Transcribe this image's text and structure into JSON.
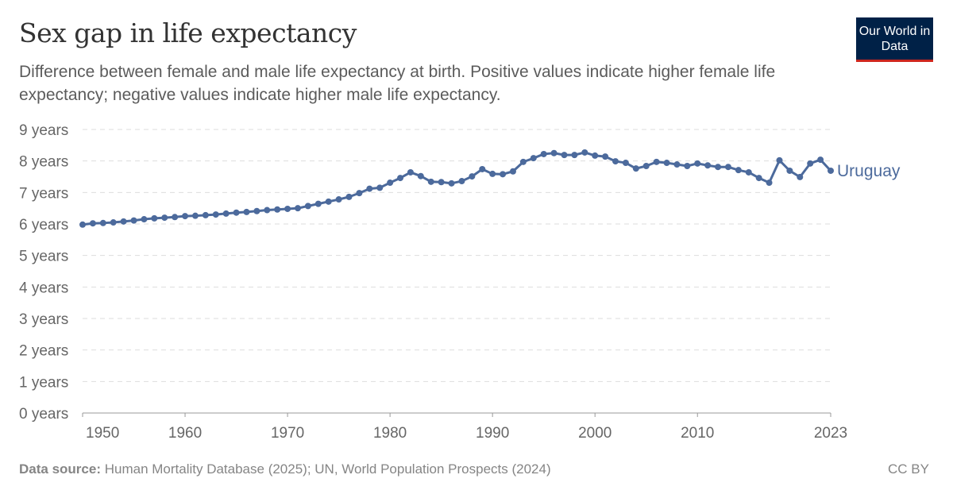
{
  "header": {
    "title": "Sex gap in life expectancy",
    "subtitle": "Difference between female and male life expectancy at birth. Positive values indicate higher female life expectancy; negative values indicate higher male life expectancy.",
    "logo": "Our World in Data"
  },
  "footer": {
    "source_label": "Data source:",
    "source": "Human Mortality Database (2025); UN, World Population Prospects (2024)",
    "license": "CC BY"
  },
  "chart_data": {
    "type": "line",
    "title": "Sex gap in life expectancy",
    "ylim": [
      0,
      9
    ],
    "y_ticks": [
      "0 years",
      "1 years",
      "2 years",
      "3 years",
      "4 years",
      "5 years",
      "6 years",
      "7 years",
      "8 years",
      "9 years"
    ],
    "x_ticks": [
      1950,
      1960,
      1970,
      1980,
      1990,
      2000,
      2010,
      2023
    ],
    "grid": "horizontal dashed",
    "color": "#4c6a9c",
    "series": [
      {
        "name": "Uruguay",
        "x": [
          1950,
          1951,
          1952,
          1953,
          1954,
          1955,
          1956,
          1957,
          1958,
          1959,
          1960,
          1961,
          1962,
          1963,
          1964,
          1965,
          1966,
          1967,
          1968,
          1969,
          1970,
          1971,
          1972,
          1973,
          1974,
          1975,
          1976,
          1977,
          1978,
          1979,
          1980,
          1981,
          1982,
          1983,
          1984,
          1985,
          1986,
          1987,
          1988,
          1989,
          1990,
          1991,
          1992,
          1993,
          1994,
          1995,
          1996,
          1997,
          1998,
          1999,
          2000,
          2001,
          2002,
          2003,
          2004,
          2005,
          2006,
          2007,
          2008,
          2009,
          2010,
          2011,
          2012,
          2013,
          2014,
          2015,
          2016,
          2017,
          2018,
          2019,
          2020,
          2021,
          2022,
          2023
        ],
        "values": [
          5.98,
          6.02,
          6.03,
          6.05,
          6.08,
          6.11,
          6.15,
          6.18,
          6.2,
          6.22,
          6.25,
          6.26,
          6.28,
          6.3,
          6.33,
          6.36,
          6.38,
          6.41,
          6.44,
          6.46,
          6.48,
          6.5,
          6.57,
          6.64,
          6.71,
          6.78,
          6.86,
          6.98,
          7.12,
          7.15,
          7.31,
          7.46,
          7.64,
          7.52,
          7.34,
          7.33,
          7.29,
          7.36,
          7.51,
          7.74,
          7.59,
          7.58,
          7.67,
          7.97,
          8.09,
          8.22,
          8.25,
          8.19,
          8.19,
          8.27,
          8.17,
          8.14,
          7.99,
          7.94,
          7.76,
          7.84,
          7.97,
          7.94,
          7.89,
          7.84,
          7.92,
          7.86,
          7.81,
          7.81,
          7.71,
          7.64,
          7.46,
          7.31,
          8.02,
          7.69,
          7.49,
          7.92,
          8.04,
          7.69
        ]
      }
    ]
  }
}
